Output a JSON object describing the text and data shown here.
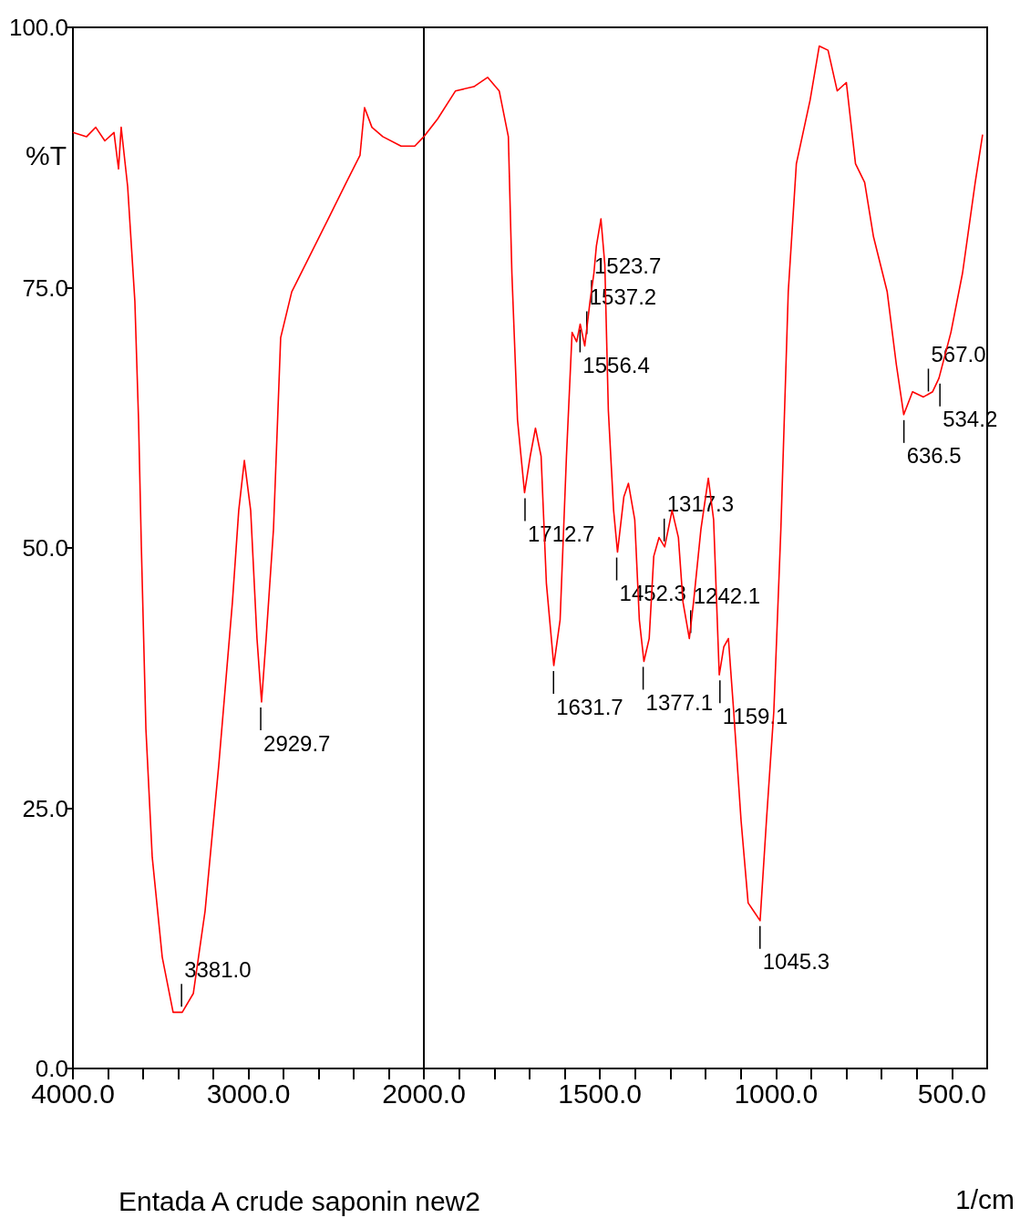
{
  "chart_data": [
    {
      "type": "line",
      "ylabel": "%T",
      "xlim": [
        4000,
        2000
      ],
      "ylim": [
        0,
        100
      ],
      "xticks": [
        {
          "value": 4000,
          "label": "4000.0"
        },
        {
          "value": 3800,
          "label": null
        },
        {
          "value": 3600,
          "label": null
        },
        {
          "value": 3400,
          "label": null
        },
        {
          "value": 3200,
          "label": null
        },
        {
          "value": 3000,
          "label": "3000.0"
        },
        {
          "value": 2800,
          "label": null
        },
        {
          "value": 2600,
          "label": null
        },
        {
          "value": 2400,
          "label": null
        },
        {
          "value": 2200,
          "label": null
        },
        {
          "value": 2000,
          "label": "2000.0"
        }
      ],
      "yticks": [
        {
          "value": 0,
          "label": "0.0"
        },
        {
          "value": 25,
          "label": "25.0"
        },
        {
          "value": 50,
          "label": "50.0"
        },
        {
          "value": 75,
          "label": "75.0"
        },
        {
          "value": 100,
          "label": "100.0"
        }
      ],
      "series": [
        {
          "color": "#ff0000",
          "x": [
            4000,
            3922,
            3870,
            3818,
            3766,
            3740,
            3725,
            3688,
            3647,
            3626,
            3610,
            3584,
            3548,
            3491,
            3429,
            3377,
            3314,
            3247,
            3169,
            3091,
            3055,
            3023,
            2987,
            2951,
            2925,
            2899,
            2857,
            2816,
            2753,
            2649,
            2545,
            2442,
            2364,
            2338,
            2296,
            2234,
            2130,
            2052,
            2000
          ],
          "values": [
            89.9,
            89.5,
            90.4,
            89.1,
            89.9,
            86.4,
            90.4,
            84.7,
            73.7,
            62.3,
            50.1,
            32.6,
            20.3,
            10.7,
            5.4,
            5.4,
            7.2,
            15.1,
            29.1,
            44.8,
            53.6,
            58.4,
            53.6,
            41.3,
            35.2,
            41.3,
            51.8,
            70.2,
            74.6,
            78.1,
            81.6,
            85.1,
            87.7,
            92.3,
            90.4,
            89.5,
            88.6,
            88.6,
            89.5
          ]
        }
      ],
      "annotations": [
        {
          "text": "3381.0",
          "x": 3381,
          "y": 5.4
        },
        {
          "text": "2929.7",
          "x": 2929.7,
          "y": 35.2
        },
        "Entada A crude saponin new2"
      ]
    },
    {
      "type": "line",
      "xlabel": "1/cm",
      "xlim": [
        2000,
        400
      ],
      "ylim": [
        0,
        100
      ],
      "tick_labels": "x",
      "xticks": [
        {
          "value": 1900,
          "label": null
        },
        {
          "value": 1800,
          "label": null
        },
        {
          "value": 1700,
          "label": null
        },
        {
          "value": 1600,
          "label": null
        },
        {
          "value": 1500,
          "label": "1500.0"
        },
        {
          "value": 1400,
          "label": null
        },
        {
          "value": 1300,
          "label": null
        },
        {
          "value": 1200,
          "label": null
        },
        {
          "value": 1100,
          "label": null
        },
        {
          "value": 1000,
          "label": "1000.0"
        },
        {
          "value": 900,
          "label": null
        },
        {
          "value": 800,
          "label": null
        },
        {
          "value": 700,
          "label": null
        },
        {
          "value": 600,
          "label": null
        },
        {
          "value": 500,
          "label": "500.0"
        }
      ],
      "yticks": [
        {
          "value": 0,
          "label": null
        },
        {
          "value": 25,
          "label": null
        },
        {
          "value": 50,
          "label": null
        },
        {
          "value": 75,
          "label": null
        },
        {
          "value": 100,
          "label": null
        }
      ],
      "series": [
        {
          "color": "#ff0000",
          "x": [
            2000,
            1961,
            1910,
            1858,
            1819,
            1786,
            1760,
            1750,
            1734,
            1714,
            1698,
            1683,
            1667,
            1652,
            1631,
            1613,
            1595,
            1579,
            1566,
            1556,
            1543,
            1528,
            1517,
            1510,
            1497,
            1486,
            1476,
            1461,
            1450,
            1432,
            1419,
            1401,
            1388,
            1375,
            1360,
            1347,
            1332,
            1316,
            1295,
            1277,
            1264,
            1246,
            1234,
            1213,
            1192,
            1177,
            1161,
            1148,
            1135,
            1120,
            1099,
            1079,
            1063,
            1045,
            1027,
            1006,
            986,
            965,
            942,
            903,
            877,
            852,
            826,
            800,
            774,
            748,
            723,
            684,
            658,
            637,
            612,
            581,
            555,
            537,
            503,
            470,
            434,
            413
          ],
          "values": [
            89.5,
            91.2,
            93.9,
            94.3,
            95.2,
            93.9,
            89.5,
            76.4,
            62.3,
            55.3,
            58.8,
            61.5,
            58.8,
            46.6,
            38.7,
            43.1,
            58.8,
            70.7,
            69.8,
            71.5,
            69.4,
            73.7,
            76.4,
            79.0,
            81.6,
            77.2,
            63.2,
            53.6,
            49.6,
            54.9,
            56.2,
            52.7,
            43.1,
            39.1,
            41.3,
            49.2,
            51.0,
            50.1,
            53.6,
            51.0,
            44.8,
            41.3,
            44.8,
            51.8,
            56.7,
            52.7,
            37.8,
            40.5,
            41.3,
            34.3,
            23.8,
            15.9,
            15.1,
            14.2,
            23.8,
            34.3,
            51.8,
            74.6,
            86.9,
            93.0,
            98.2,
            97.8,
            93.9,
            94.7,
            86.9,
            85.1,
            79.9,
            74.6,
            67.6,
            62.8,
            65.0,
            64.5,
            65.0,
            66.3,
            70.7,
            76.4,
            85.1,
            89.7
          ]
        }
      ],
      "annotations": [
        {
          "text": "1712.7",
          "x": 1712.7,
          "y": 55.3
        },
        {
          "text": "1631.7",
          "x": 1631.7,
          "y": 38.7
        },
        {
          "text": "1556.4",
          "x": 1556.4,
          "y": 71.5
        },
        {
          "text": "1537.2",
          "x": 1537.2,
          "y": 70
        },
        {
          "text": "1523.7",
          "x": 1523.7,
          "y": 73
        },
        {
          "text": "1452.3",
          "x": 1452.3,
          "y": 49.6
        },
        {
          "text": "1377.1",
          "x": 1377.1,
          "y": 39.1
        },
        {
          "text": "1317.3",
          "x": 1317.3,
          "y": 50.1
        },
        {
          "text": "1242.1",
          "x": 1242.1,
          "y": 41.3
        },
        {
          "text": "1159.1",
          "x": 1159.1,
          "y": 37.8
        },
        {
          "text": "1045.3",
          "x": 1045.3,
          "y": 14.2
        },
        {
          "text": "636.5",
          "x": 636.5,
          "y": 62.8
        },
        {
          "text": "567.0",
          "x": 567,
          "y": 64.5
        },
        {
          "text": "534.2",
          "x": 534.2,
          "y": 66.3
        }
      ]
    }
  ]
}
